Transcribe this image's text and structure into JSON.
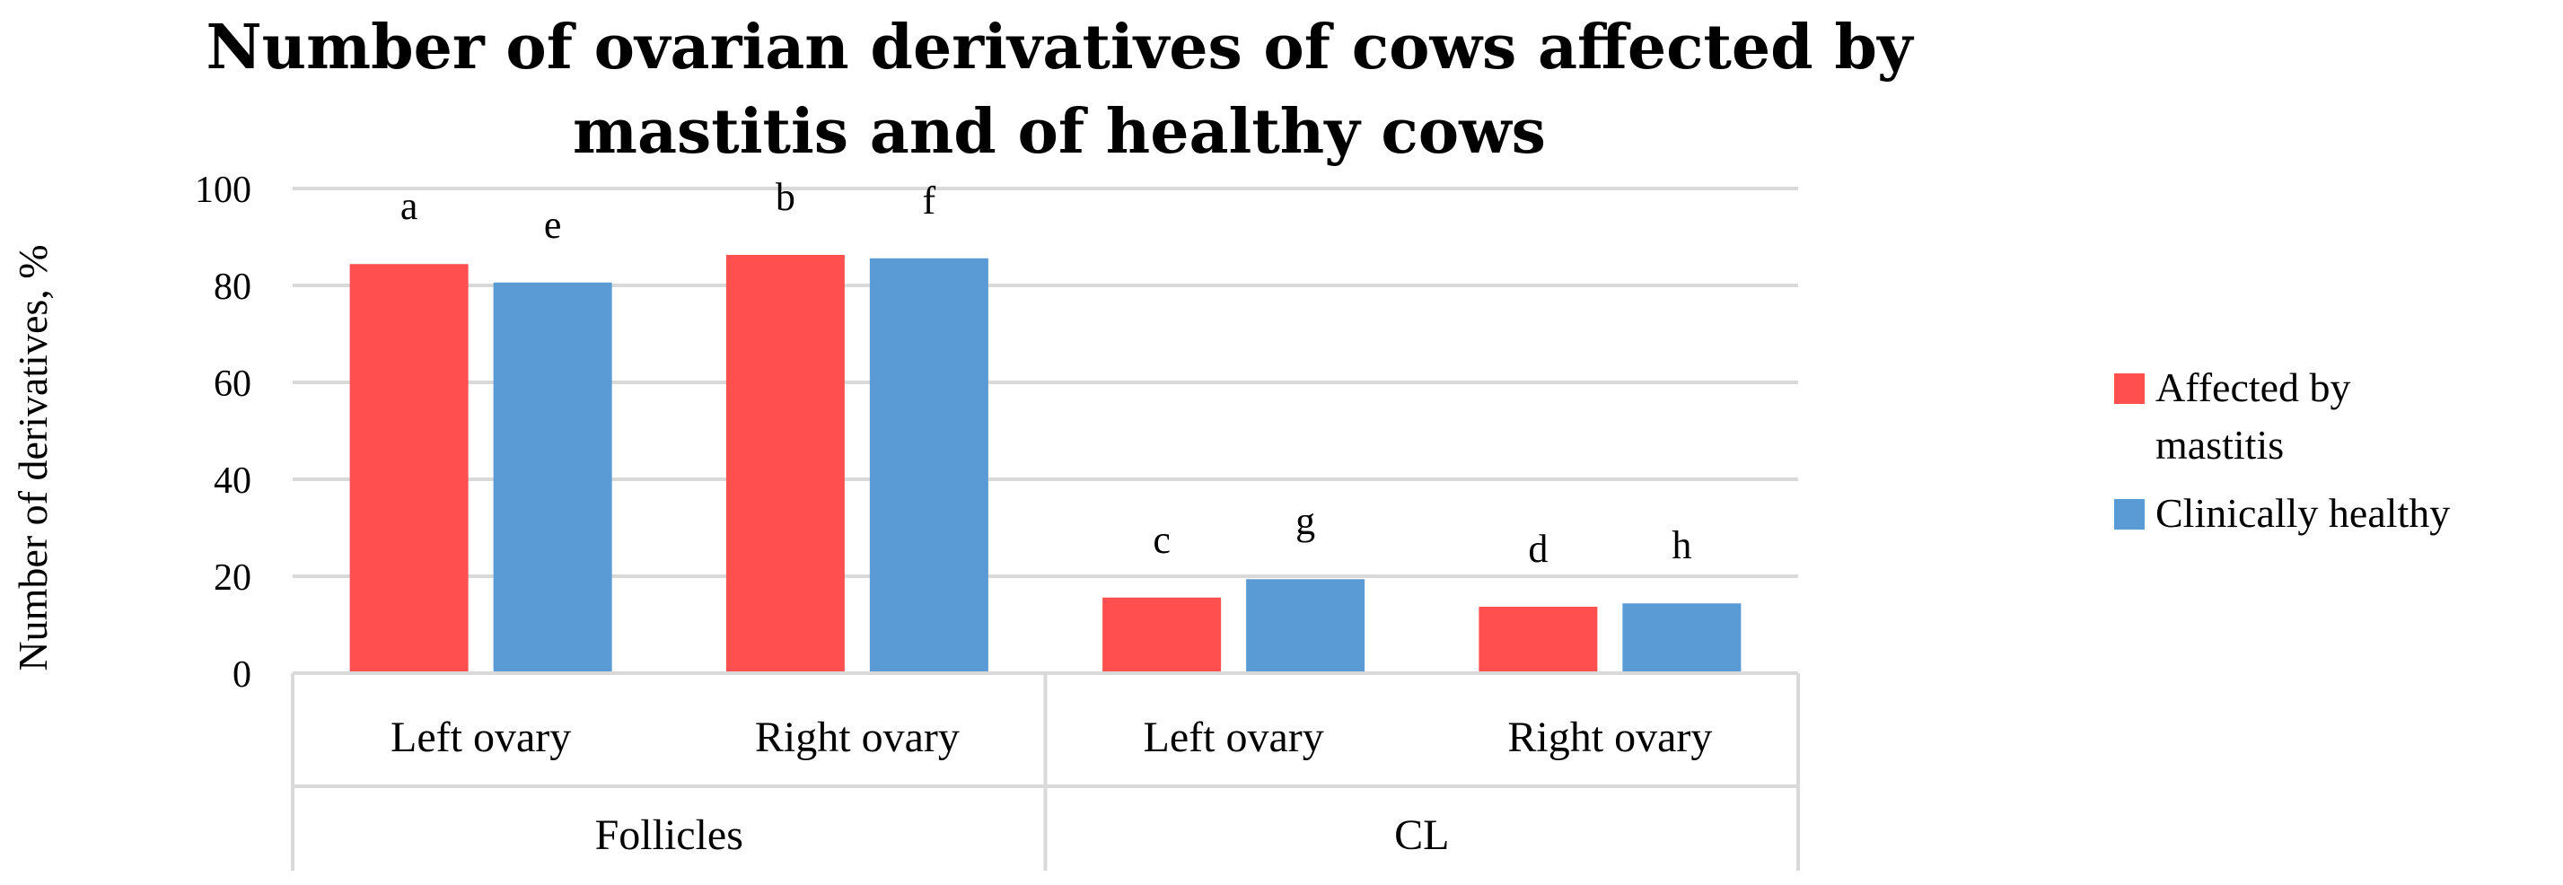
{
  "chart_data": {
    "type": "bar",
    "title": "Number of ovarian derivatives of cows affected by mastitis and of healthy cows",
    "ylabel": "Number of derivatives, %",
    "xlabel": "",
    "ylim": [
      0,
      100
    ],
    "yticks": [
      0,
      20,
      40,
      60,
      80,
      100
    ],
    "grid": true,
    "legend_position": "right",
    "groups": [
      {
        "label": "Follicles",
        "categories": [
          "Left ovary",
          "Right ovary"
        ]
      },
      {
        "label": "CL",
        "categories": [
          "Left ovary",
          "Right ovary"
        ]
      }
    ],
    "series": [
      {
        "name": "Affected by mastitis",
        "color": "#FF4F4F",
        "values": [
          84.4,
          86.3,
          15.6,
          13.7
        ],
        "labels": [
          "a",
          "b",
          "c",
          "d"
        ]
      },
      {
        "name": "Clinically healthy",
        "color": "#5B9BD5",
        "values": [
          80.6,
          85.6,
          19.4,
          14.4
        ],
        "labels": [
          "e",
          "f",
          "g",
          "h"
        ]
      }
    ]
  }
}
